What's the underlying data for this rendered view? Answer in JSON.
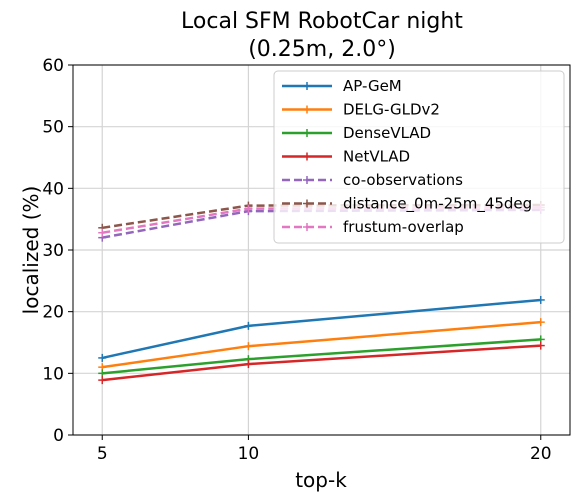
{
  "chart_data": {
    "type": "line",
    "title": "Local SFM RobotCar night",
    "subtitle": "(0.25m, 2.0°)",
    "xlabel": "top-k",
    "ylabel": "localized (%)",
    "x": [
      5,
      10,
      20
    ],
    "xlim": [
      4,
      21
    ],
    "ylim": [
      0,
      60
    ],
    "yticks": [
      0,
      10,
      20,
      30,
      40,
      50,
      60
    ],
    "xticks": [
      5,
      10,
      20
    ],
    "grid": true,
    "legend_position": "upper-right",
    "series": [
      {
        "name": "AP-GeM",
        "values": [
          12.5,
          17.7,
          21.9
        ],
        "color": "#1f77b4",
        "dashed": false
      },
      {
        "name": "DELG-GLDv2",
        "values": [
          11.0,
          14.4,
          18.3
        ],
        "color": "#ff7f0e",
        "dashed": false
      },
      {
        "name": "DenseVLAD",
        "values": [
          10.0,
          12.3,
          15.5
        ],
        "color": "#2ca02c",
        "dashed": false
      },
      {
        "name": "NetVLAD",
        "values": [
          8.9,
          11.5,
          14.5
        ],
        "color": "#d62728",
        "dashed": false
      },
      {
        "name": "co-observations",
        "values": [
          32.0,
          36.3,
          36.5
        ],
        "color": "#9467bd",
        "dashed": true
      },
      {
        "name": "distance_0m-25m_45deg",
        "values": [
          33.6,
          37.2,
          37.3
        ],
        "color": "#8c564b",
        "dashed": true
      },
      {
        "name": "frustum-overlap",
        "values": [
          32.8,
          36.7,
          36.9
        ],
        "color": "#e377c2",
        "dashed": true
      }
    ]
  }
}
